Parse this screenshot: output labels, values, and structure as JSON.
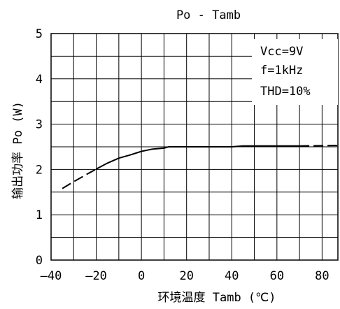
{
  "chart_data": {
    "type": "line",
    "title": "Po - Tamb",
    "xlabel": "环境温度 Tamb (℃)",
    "ylabel": "输出功率 Po (W)",
    "xlim": [
      -40,
      87
    ],
    "ylim": [
      0,
      5
    ],
    "x_ticks": [
      -40,
      -20,
      0,
      20,
      40,
      60,
      80
    ],
    "x_tick_labels": [
      "—40",
      "—20",
      "0",
      "20",
      "40",
      "60",
      "80"
    ],
    "y_ticks": [
      0,
      1,
      2,
      3,
      4,
      5
    ],
    "y_tick_labels": [
      "0",
      "1",
      "2",
      "3",
      "4",
      "5"
    ],
    "grid": true,
    "annotations": [
      "Vcc=9V",
      "f=1kHz",
      "THD=10%"
    ],
    "legend": "top-right",
    "series": [
      {
        "style": "dashed",
        "x": [
          -35,
          -30,
          -25,
          -20
        ],
        "y": [
          1.58,
          1.73,
          1.87,
          2.01
        ]
      },
      {
        "style": "solid",
        "x": [
          -20,
          -15,
          -10,
          -5,
          0,
          5,
          10,
          12,
          20,
          30,
          40,
          45,
          55,
          65,
          70
        ],
        "y": [
          2.01,
          2.14,
          2.25,
          2.32,
          2.4,
          2.45,
          2.47,
          2.5,
          2.5,
          2.5,
          2.5,
          2.52,
          2.52,
          2.52,
          2.52
        ]
      },
      {
        "style": "dashed",
        "x": [
          70,
          87
        ],
        "y": [
          2.52,
          2.53
        ]
      }
    ]
  }
}
